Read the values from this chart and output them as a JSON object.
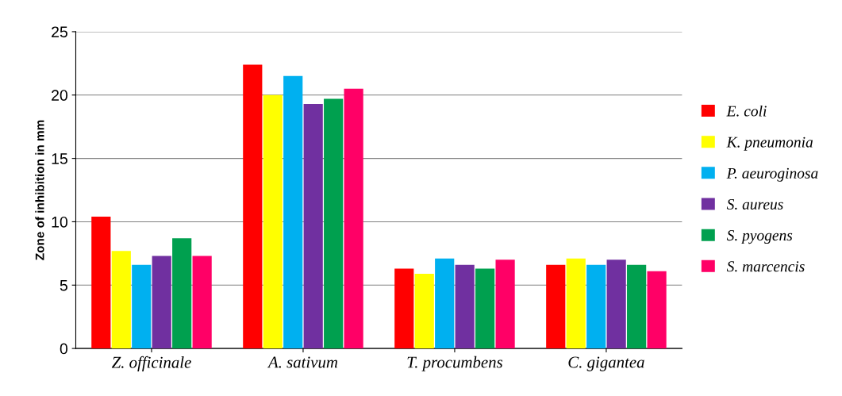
{
  "chart_data": {
    "type": "bar",
    "ylabel": "Zone of inhibition in mm",
    "categories": [
      "Z. officinale",
      "A. sativum",
      "T. procumbens",
      "C. gigantea"
    ],
    "series": [
      {
        "name": "E. coli",
        "color": "#ff0000",
        "values": [
          10.4,
          22.4,
          6.3,
          6.6
        ]
      },
      {
        "name": "K. pneumonia",
        "color": "#ffff00",
        "values": [
          7.7,
          20.0,
          5.9,
          7.1
        ]
      },
      {
        "name": "P. aeuroginosa",
        "color": "#00b0f0",
        "values": [
          6.6,
          21.5,
          7.1,
          6.6
        ]
      },
      {
        "name": "S. aureus",
        "color": "#7030a0",
        "values": [
          7.3,
          19.3,
          6.6,
          7.0
        ]
      },
      {
        "name": "S. pyogens",
        "color": "#00a04f",
        "values": [
          8.7,
          19.7,
          6.3,
          6.6
        ]
      },
      {
        "name": "S. marcencis",
        "color": "#ff0066",
        "values": [
          7.3,
          20.5,
          7.0,
          6.1
        ]
      }
    ],
    "ylim": [
      0,
      25
    ],
    "yticks": [
      0,
      5,
      10,
      15,
      20,
      25
    ],
    "grid": "y",
    "legend": "right"
  }
}
